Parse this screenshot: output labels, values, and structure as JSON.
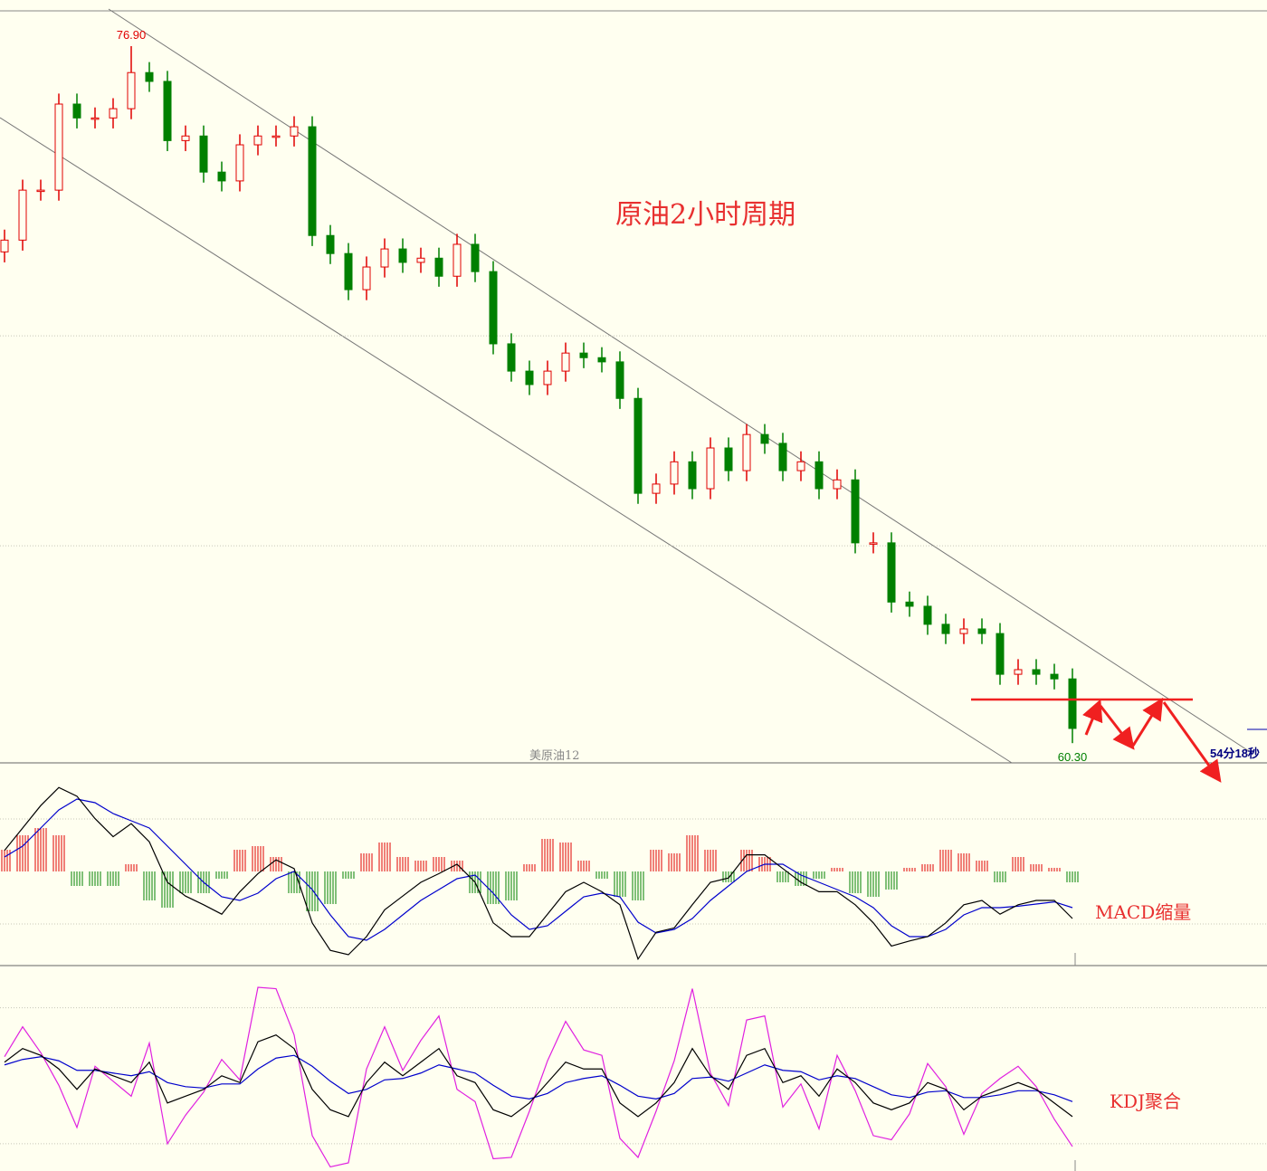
{
  "chart_data": [
    {
      "type": "candlestick",
      "title": "原油2小时周期",
      "symbol": "美原油12",
      "countdown": "54分18秒",
      "max_label": "76.90",
      "min_label": "60.30",
      "up_color": "#e00000",
      "down_color": "#008000",
      "ylim": [
        59.83,
        77.74
      ],
      "grid_lines": [
        65,
        70
      ],
      "open": [
        72.0,
        72.28,
        73.47,
        73.47,
        75.52,
        75.19,
        75.19,
        75.41,
        76.27,
        76.06,
        74.65,
        74.76,
        73.9,
        73.69,
        74.55,
        74.76,
        74.76,
        74.98,
        72.39,
        71.96,
        71.1,
        71.64,
        72.07,
        71.75,
        71.85,
        71.42,
        72.18,
        71.53,
        69.81,
        69.16,
        68.84,
        69.16,
        69.59,
        69.48,
        69.38,
        68.51,
        66.25,
        66.47,
        67.0,
        66.36,
        67.33,
        66.79,
        67.65,
        67.44,
        66.79,
        67.0,
        66.36,
        66.57,
        65.07,
        65.07,
        63.66,
        63.56,
        63.13,
        62.91,
        63.02,
        62.91,
        61.94,
        62.05,
        61.94,
        61.83
      ],
      "high": [
        72.53,
        73.72,
        73.72,
        75.77,
        75.77,
        75.44,
        75.66,
        76.9,
        76.52,
        76.31,
        75.01,
        75.01,
        74.15,
        74.8,
        75.01,
        75.01,
        75.23,
        75.23,
        72.64,
        72.21,
        71.89,
        72.32,
        72.32,
        72.1,
        72.1,
        72.43,
        72.43,
        71.78,
        70.06,
        69.41,
        69.41,
        69.84,
        69.84,
        69.73,
        69.63,
        68.76,
        66.72,
        67.25,
        67.25,
        67.58,
        67.58,
        67.9,
        67.9,
        67.69,
        67.25,
        67.25,
        66.82,
        66.82,
        65.32,
        65.32,
        63.91,
        63.81,
        63.38,
        63.27,
        63.27,
        63.16,
        62.3,
        62.3,
        62.19,
        62.08
      ],
      "low": [
        71.75,
        72.03,
        73.22,
        73.22,
        74.94,
        74.94,
        74.94,
        75.16,
        75.81,
        74.4,
        74.4,
        73.65,
        73.44,
        73.44,
        74.3,
        74.51,
        74.51,
        72.14,
        71.71,
        70.85,
        70.85,
        71.39,
        71.5,
        71.5,
        71.17,
        71.17,
        71.28,
        69.56,
        68.91,
        68.59,
        68.59,
        68.91,
        69.23,
        69.13,
        68.26,
        66.0,
        66.0,
        66.22,
        66.11,
        66.11,
        66.54,
        66.54,
        67.19,
        66.54,
        66.54,
        66.11,
        66.11,
        64.82,
        64.82,
        63.41,
        63.31,
        62.88,
        62.66,
        62.66,
        62.66,
        61.69,
        61.69,
        61.69,
        61.58,
        60.3
      ],
      "close": [
        72.28,
        73.47,
        73.47,
        75.52,
        75.19,
        75.19,
        75.41,
        76.27,
        76.06,
        74.65,
        74.76,
        73.9,
        73.69,
        74.55,
        74.76,
        74.76,
        74.98,
        72.39,
        71.96,
        71.1,
        71.64,
        72.07,
        71.75,
        71.85,
        71.42,
        72.18,
        71.53,
        69.81,
        69.16,
        68.84,
        69.16,
        69.59,
        69.48,
        69.38,
        68.51,
        66.25,
        66.47,
        67.0,
        66.36,
        67.33,
        66.79,
        67.65,
        67.44,
        66.79,
        67.0,
        66.36,
        66.57,
        65.07,
        65.07,
        63.66,
        63.56,
        63.13,
        62.91,
        63.02,
        62.91,
        61.94,
        62.05,
        61.94,
        61.83,
        60.65
      ]
    },
    {
      "type": "macd",
      "label": "MACD缩量",
      "ylim": [
        -1.3,
        1.5
      ],
      "grid_lines": [
        0.725,
        -0.725
      ],
      "up_color": "#e00000",
      "down_color": "#008000",
      "dif_color": "#000000",
      "dea_color": "#0000cc",
      "histogram": [
        0.3,
        0.5,
        0.6,
        0.5,
        -0.2,
        -0.2,
        -0.2,
        0.1,
        -0.4,
        -0.5,
        -0.3,
        -0.3,
        -0.1,
        0.3,
        0.35,
        0.2,
        -0.3,
        -0.55,
        -0.45,
        -0.1,
        0.25,
        0.4,
        0.2,
        0.15,
        0.2,
        0.15,
        -0.3,
        -0.45,
        -0.4,
        0.1,
        0.45,
        0.4,
        0.15,
        -0.1,
        -0.35,
        -0.4,
        0.3,
        0.25,
        0.5,
        0.3,
        -0.15,
        0.3,
        0.2,
        -0.15,
        -0.2,
        -0.1,
        0.05,
        -0.3,
        -0.35,
        -0.25,
        0.05,
        0.1,
        0.3,
        0.25,
        0.15,
        -0.15,
        0.2,
        0.1,
        0.05,
        -0.15
      ],
      "dif": [
        0.29,
        0.6,
        0.91,
        1.16,
        1.04,
        0.73,
        0.48,
        0.66,
        0.41,
        -0.15,
        -0.34,
        -0.46,
        -0.59,
        -0.28,
        -0.03,
        0.16,
        0.04,
        -0.71,
        -1.09,
        -1.15,
        -0.9,
        -0.53,
        -0.34,
        -0.15,
        -0.03,
        0.1,
        -0.15,
        -0.71,
        -0.9,
        -0.9,
        -0.59,
        -0.28,
        -0.15,
        -0.28,
        -0.46,
        -1.21,
        -0.84,
        -0.78,
        -0.46,
        -0.15,
        -0.09,
        0.23,
        0.23,
        0.04,
        -0.15,
        -0.28,
        -0.28,
        -0.46,
        -0.71,
        -1.03,
        -0.96,
        -0.9,
        -0.71,
        -0.46,
        -0.4,
        -0.59,
        -0.46,
        -0.4,
        -0.4,
        -0.65
      ],
      "dea": [
        0.2,
        0.35,
        0.6,
        0.85,
        1.0,
        0.95,
        0.8,
        0.7,
        0.6,
        0.35,
        0.1,
        -0.15,
        -0.35,
        -0.4,
        -0.3,
        -0.1,
        0.0,
        -0.25,
        -0.6,
        -0.9,
        -0.95,
        -0.8,
        -0.6,
        -0.4,
        -0.25,
        -0.1,
        -0.05,
        -0.3,
        -0.6,
        -0.8,
        -0.75,
        -0.55,
        -0.35,
        -0.3,
        -0.35,
        -0.7,
        -0.85,
        -0.8,
        -0.65,
        -0.4,
        -0.2,
        0.0,
        0.1,
        0.1,
        -0.05,
        -0.15,
        -0.25,
        -0.35,
        -0.5,
        -0.75,
        -0.9,
        -0.9,
        -0.8,
        -0.6,
        -0.5,
        -0.5,
        -0.48,
        -0.45,
        -0.42,
        -0.5
      ]
    },
    {
      "type": "kdj",
      "label": "KDJ聚合",
      "ylim": [
        -20,
        131
      ],
      "grid_lines": [
        0,
        100
      ],
      "k_color": "#000000",
      "d_color": "#0000cc",
      "j_color": "#e020e0",
      "k": [
        60,
        70,
        65,
        55,
        40,
        55,
        50,
        45,
        60,
        30,
        35,
        40,
        50,
        45,
        75,
        80,
        70,
        40,
        25,
        20,
        45,
        60,
        50,
        60,
        70,
        50,
        45,
        25,
        20,
        30,
        45,
        60,
        55,
        55,
        30,
        20,
        30,
        45,
        70,
        50,
        40,
        65,
        70,
        45,
        50,
        35,
        55,
        45,
        30,
        25,
        30,
        45,
        40,
        25,
        35,
        40,
        45,
        40,
        30,
        20
      ],
      "d": [
        58,
        62,
        64,
        61,
        54,
        54,
        52,
        50,
        53,
        45,
        42,
        41,
        44,
        44,
        55,
        63,
        65,
        57,
        46,
        37,
        40,
        47,
        48,
        52,
        58,
        55,
        52,
        43,
        35,
        33,
        37,
        45,
        48,
        50,
        43,
        35,
        33,
        37,
        48,
        49,
        46,
        52,
        58,
        54,
        53,
        47,
        50,
        48,
        42,
        36,
        34,
        38,
        39,
        34,
        34,
        36,
        39,
        39,
        36,
        31
      ],
      "j": [
        64,
        86,
        67,
        43,
        12,
        57,
        46,
        35,
        74,
        0,
        21,
        38,
        62,
        47,
        115,
        114,
        80,
        6,
        -17,
        -14,
        55,
        86,
        54,
        76,
        94,
        40,
        31,
        -11,
        -10,
        24,
        61,
        90,
        69,
        65,
        4,
        -10,
        24,
        61,
        114,
        52,
        28,
        91,
        94,
        27,
        44,
        11,
        65,
        39,
        6,
        3,
        22,
        59,
        42,
        7,
        37,
        48,
        57,
        42,
        18,
        -2
      ]
    }
  ]
}
